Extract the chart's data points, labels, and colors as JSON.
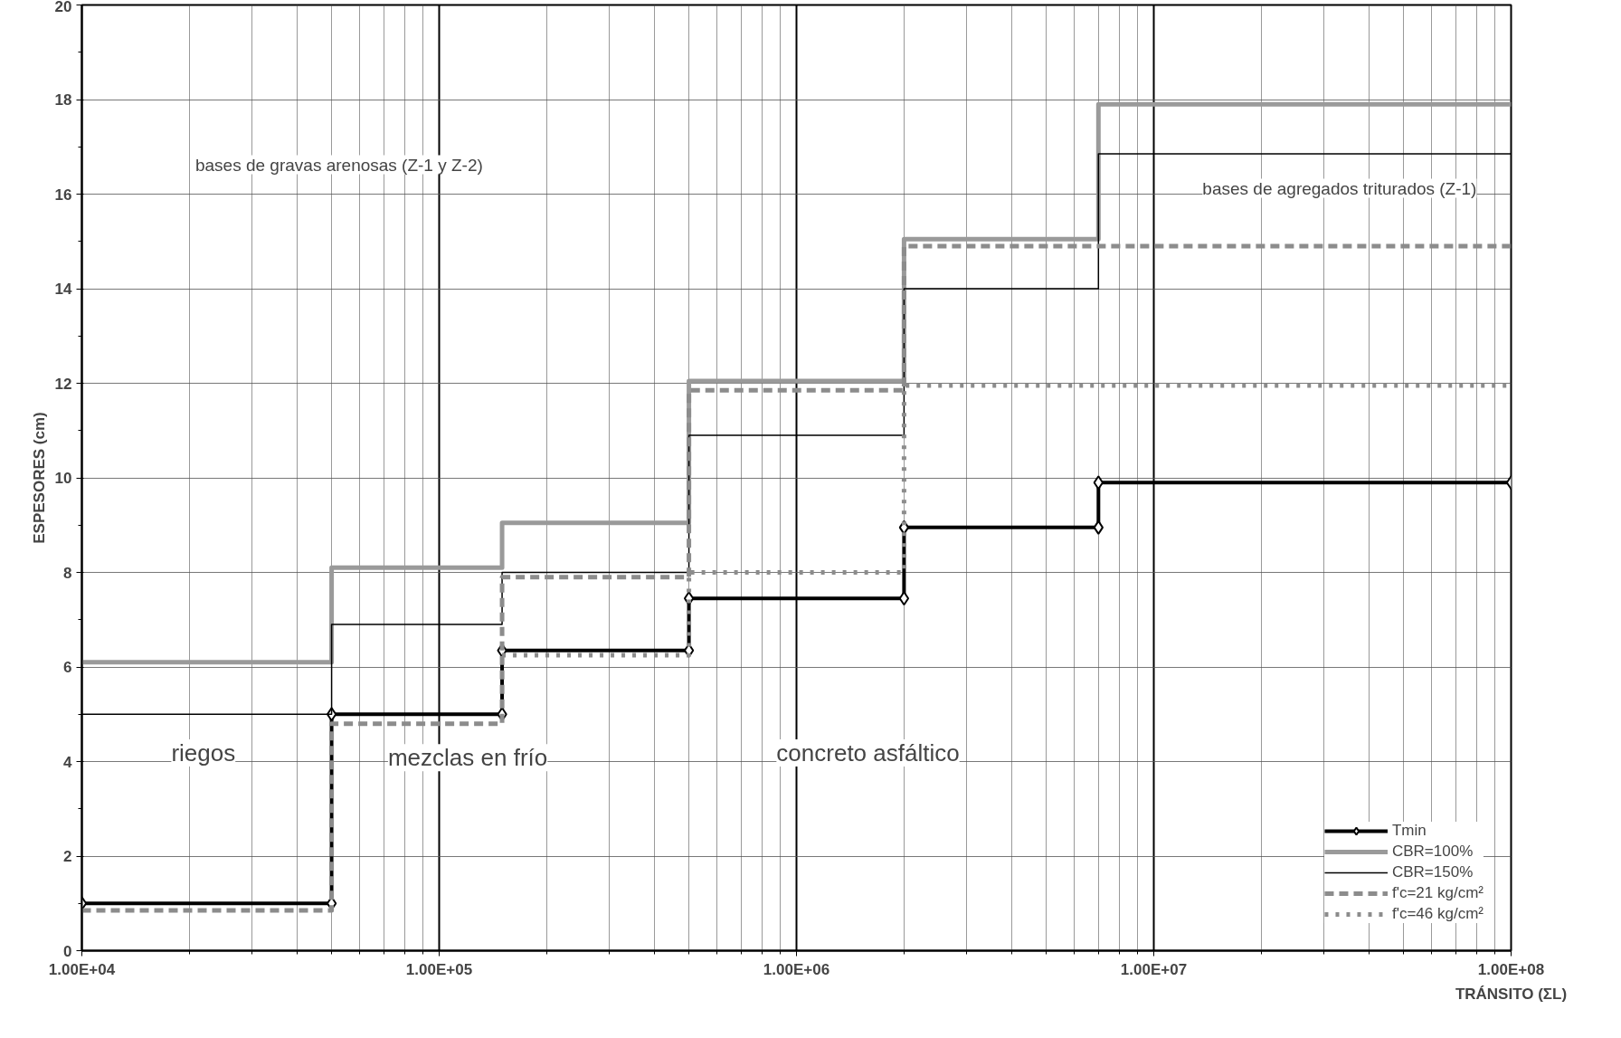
{
  "chart_data": {
    "type": "step",
    "xlabel": "TRÁNSITO (ΣL)",
    "ylabel": "ESPESORES (cm)",
    "log": "x",
    "xlim": [
      10000,
      100000000
    ],
    "ylim": [
      0,
      20
    ],
    "xticks": [
      {
        "value": 10000,
        "label": "1.00E+04"
      },
      {
        "value": 100000,
        "label": "1.00E+05"
      },
      {
        "value": 1000000,
        "label": "1.00E+06"
      },
      {
        "value": 10000000,
        "label": "1.00E+07"
      },
      {
        "value": 100000000,
        "label": "1.00E+08"
      }
    ],
    "yticks": [
      0,
      2,
      4,
      6,
      8,
      10,
      12,
      14,
      16,
      18,
      20
    ],
    "grid": true,
    "legend": "bottom right",
    "series": [
      {
        "name": "Tmin",
        "type": "line",
        "marker": "diamond",
        "color": "#000000",
        "x": [
          10000,
          50000,
          50000,
          150000,
          150000,
          500000,
          500000,
          2000000,
          2000000,
          7000000,
          7000000,
          100000000
        ],
        "values": [
          1,
          1,
          5,
          5,
          6.35,
          6.35,
          7.45,
          7.45,
          8.95,
          8.95,
          9.9,
          9.9
        ]
      },
      {
        "name": "CBR=100%",
        "color": "#9a9a9a",
        "x": [
          10000,
          50000,
          150000,
          500000,
          2000000,
          7000000,
          100000000
        ],
        "values": [
          6.1,
          8.1,
          9.05,
          12.05,
          15.05,
          17.9,
          17.9
        ]
      },
      {
        "name": "CBR=150%",
        "color": "#000000",
        "x": [
          10000,
          50000,
          150000,
          500000,
          2000000,
          7000000,
          100000000
        ],
        "values": [
          5.0,
          6.9,
          8.0,
          10.9,
          14.0,
          16.85,
          16.85
        ]
      },
      {
        "name": "f'c=21 kg/cm²",
        "color": "#8c8c8c",
        "line_style": "dashed",
        "x": [
          10000,
          50000,
          150000,
          500000,
          2000000,
          7000000,
          100000000
        ],
        "values": [
          0.85,
          4.8,
          7.9,
          11.85,
          14.9,
          14.9,
          14.9
        ]
      },
      {
        "name": "f'c=46 kg/cm²",
        "color": "#8c8c8c",
        "line_style": "dotted",
        "x": [
          150000,
          500000,
          2000000,
          100000000
        ],
        "values": [
          6.25,
          8.0,
          11.95,
          11.95
        ]
      }
    ],
    "annotations": [
      "bases de gravas arenosas (Z-1 y Z-2)",
      "bases de agregados triturados (Z-1)",
      "riegos",
      "mezclas en frío",
      "concreto asfáltico"
    ]
  }
}
